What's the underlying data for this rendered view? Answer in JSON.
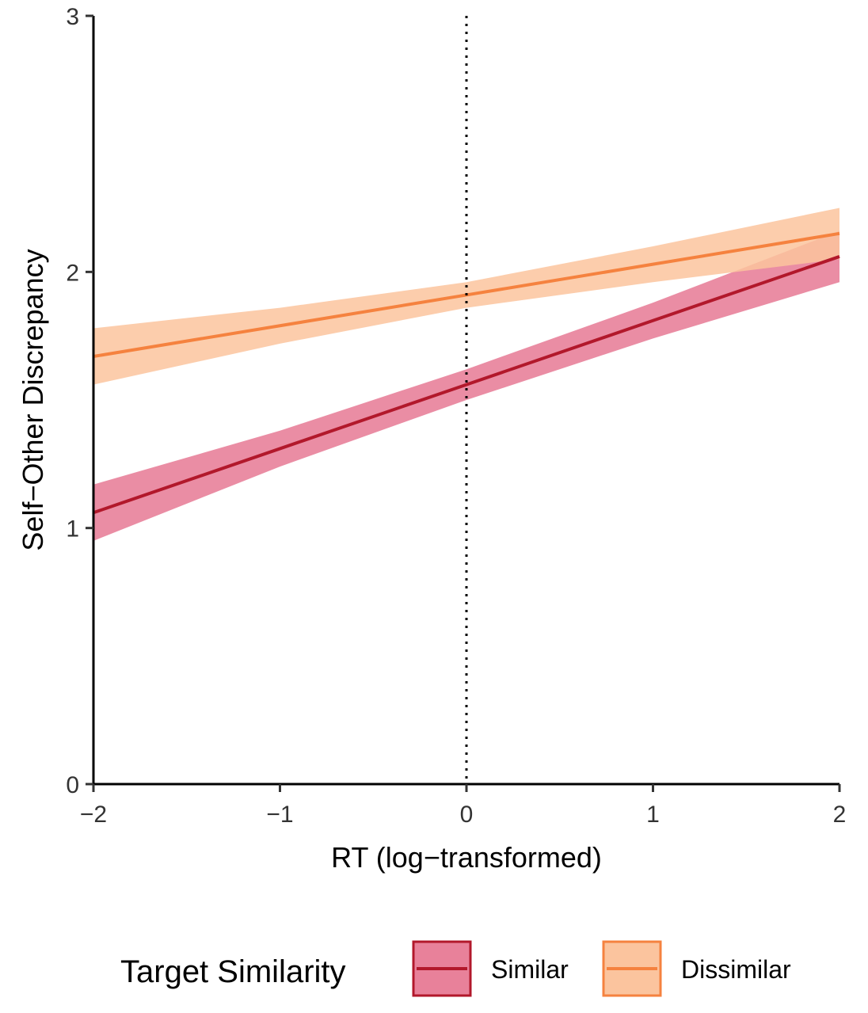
{
  "chart_data": {
    "type": "line",
    "xlabel": "RT (log−transformed)",
    "ylabel": "Self−Other Discrepancy",
    "xlim": [
      -2,
      2
    ],
    "ylim": [
      0,
      3
    ],
    "x_ticks": [
      -2,
      -1,
      0,
      1,
      2
    ],
    "x_tick_labels": [
      "−2",
      "−1",
      "0",
      "1",
      "2"
    ],
    "y_ticks": [
      0,
      1,
      2,
      3
    ],
    "y_tick_labels": [
      "0",
      "1",
      "2",
      "3"
    ],
    "reference_line": {
      "x": 0,
      "style": "dotted"
    },
    "grid": false,
    "legend": {
      "title": "Target Similarity",
      "placement": "bottom"
    },
    "series": [
      {
        "name": "Similar",
        "color": "#B2182B",
        "fill_color": "#E8819A",
        "x": [
          -2,
          -1,
          0,
          1,
          2
        ],
        "y": [
          1.06,
          1.31,
          1.56,
          1.81,
          2.06
        ],
        "lower": [
          0.95,
          1.24,
          1.5,
          1.74,
          1.96
        ],
        "upper": [
          1.17,
          1.38,
          1.62,
          1.88,
          2.16
        ]
      },
      {
        "name": "Dissimilar",
        "color": "#F5823F",
        "fill_color": "#FBC49E",
        "x": [
          -2,
          -1,
          0,
          1,
          2
        ],
        "y": [
          1.67,
          1.79,
          1.91,
          2.03,
          2.15
        ],
        "lower": [
          1.56,
          1.72,
          1.86,
          1.96,
          2.05
        ],
        "upper": [
          1.78,
          1.86,
          1.96,
          2.1,
          2.25
        ]
      }
    ]
  }
}
